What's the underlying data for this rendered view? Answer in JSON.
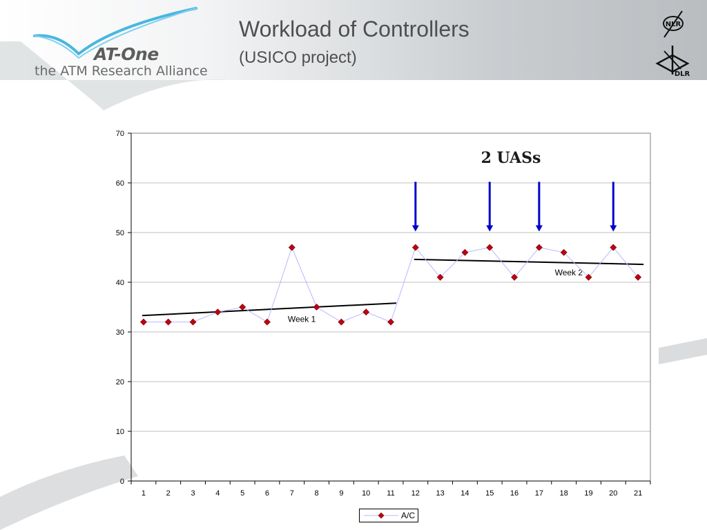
{
  "header": {
    "title": "Workload of Controllers",
    "subtitle": "(USICO project)",
    "logo_name": "AT-One",
    "logo_tagline": "the ATM Research Alliance",
    "partner_logo_1": "NLR",
    "partner_logo_2": "DLR"
  },
  "chart_data": {
    "type": "line",
    "title": "",
    "xlabel": "",
    "ylabel": "",
    "categories": [
      "1",
      "2",
      "3",
      "4",
      "5",
      "6",
      "7",
      "8",
      "9",
      "10",
      "11",
      "12",
      "13",
      "14",
      "15",
      "16",
      "17",
      "18",
      "19",
      "20",
      "21"
    ],
    "series": [
      {
        "name": "A/C",
        "values": [
          32,
          32,
          32,
          34,
          35,
          32,
          47,
          35,
          32,
          34,
          32,
          47,
          41,
          46,
          47,
          41,
          47,
          46,
          41,
          47,
          41
        ],
        "color": "#c0000f",
        "line_color": "#b7b7ff",
        "marker": "diamond"
      }
    ],
    "trendlines": [
      {
        "label": "Week 1",
        "from": [
          1,
          33.3
        ],
        "to": [
          11,
          35.8
        ]
      },
      {
        "label": "Week 2",
        "from": [
          12,
          44.6
        ],
        "to": [
          21,
          43.6
        ]
      }
    ],
    "annotations": {
      "uas_label": "2 UASs",
      "arrows_at_x": [
        12,
        15,
        17,
        20
      ],
      "arrow_color": "#0000cc"
    },
    "ylim": [
      0,
      70
    ],
    "yticks": [
      0,
      10,
      20,
      30,
      40,
      50,
      60,
      70
    ],
    "grid": true,
    "legend_position": "bottom"
  }
}
